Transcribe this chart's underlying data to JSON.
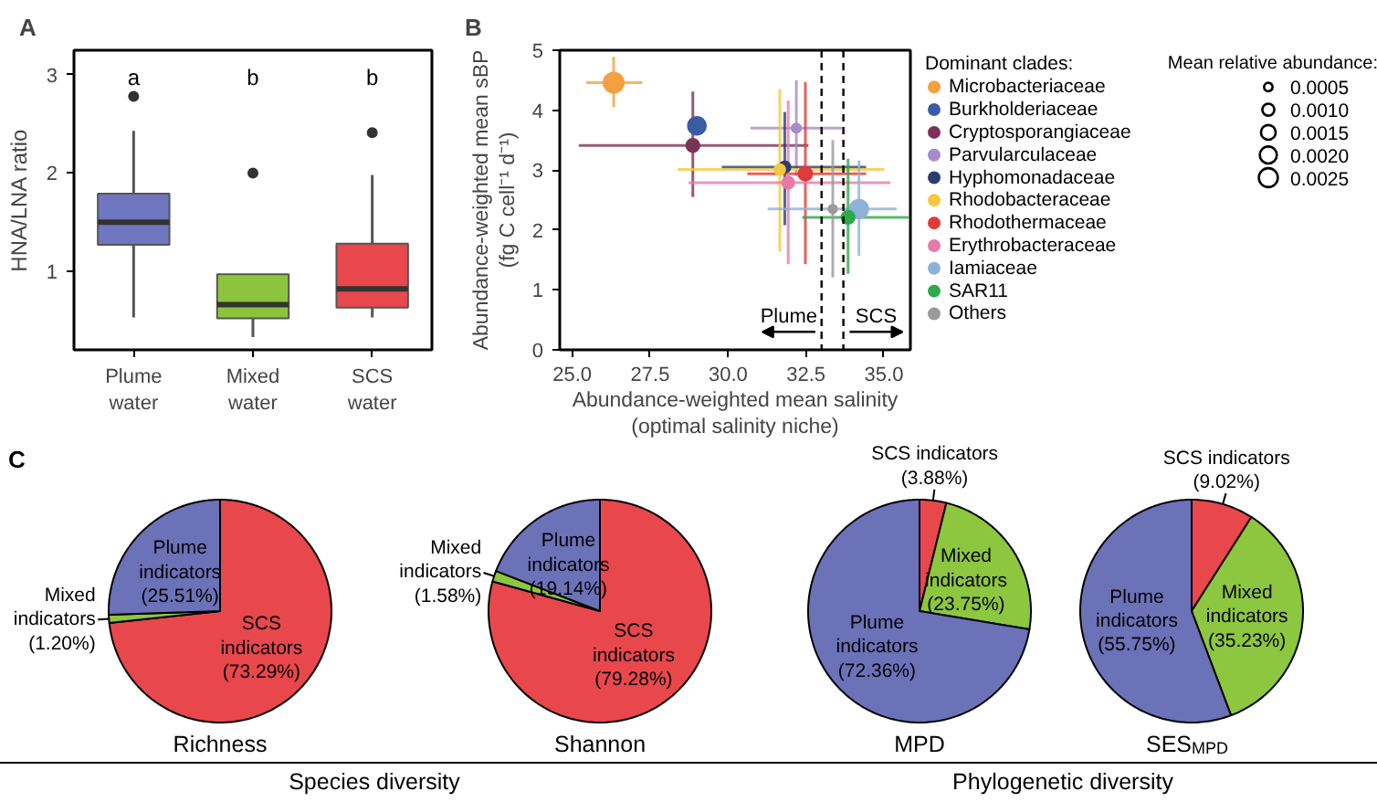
{
  "chart_data": [
    {
      "type": "box",
      "title": "A",
      "ylabel": "HNA/LNA ratio",
      "categories": [
        "Plume water",
        "Mixed water",
        "SCS water"
      ],
      "colors": [
        "#6f77c0",
        "#8cc43d",
        "#e8474b"
      ],
      "ylim": [
        0.2,
        3.25
      ],
      "yticks": [
        1,
        2,
        3
      ],
      "grid": false,
      "boxes": [
        {
          "low": 0.53,
          "q1": 1.27,
          "median": 1.5,
          "q3": 1.79,
          "high": 2.43,
          "outliers": [
            2.78
          ]
        },
        {
          "low": 0.33,
          "q1": 0.52,
          "median": 0.66,
          "q3": 0.97,
          "high": 0.97,
          "outliers": [
            2.0
          ]
        },
        {
          "low": 0.53,
          "q1": 0.63,
          "median": 0.82,
          "q3": 1.28,
          "high": 1.98,
          "outliers": [
            2.41
          ]
        }
      ],
      "annotations": [
        "a",
        "b",
        "b"
      ]
    },
    {
      "type": "bubble",
      "title": "B",
      "xlabel": "Abundance-weighted mean salinity\n(optimal salinity niche)",
      "ylabel": "Abundance-weighted mean sBP\n(fg C cell⁻¹ d⁻¹)",
      "legend_title": "Dominant clades:",
      "legend": "right",
      "grid": false,
      "xlim": [
        24.6,
        35.85
      ],
      "ylim": [
        0,
        5
      ],
      "xticks": [
        {
          "value": 25,
          "label": "25.0"
        },
        {
          "value": 27.5,
          "label": "27.5"
        },
        {
          "value": 30,
          "label": "30.0"
        },
        {
          "value": 32.5,
          "label": "32.5"
        },
        {
          "value": 35,
          "label": "35.0"
        }
      ],
      "yticks": [
        0,
        1,
        2,
        3,
        4,
        5
      ],
      "size_legend": [
        0.0005,
        {
          "value": 0.001,
          "label": "0.0010"
        },
        0.0015,
        {
          "value": 0.002,
          "label": "0.0020"
        },
        0.0025
      ],
      "series": [
        {
          "name": "Microbacteriaceae",
          "color": "#f4a040",
          "x": [
            26.33
          ],
          "values": [
            4.46
          ],
          "sizes": [
            0.0028
          ],
          "errors": [
            [
              4.05,
              4.89
            ]
          ],
          "xerrors": [
            [
              25.45,
              27.25
            ]
          ]
        },
        {
          "name": "Burkholderiaceae",
          "color": "#3b5ba5",
          "x": [
            29.0
          ],
          "values": [
            3.74
          ],
          "sizes": [
            0.0022
          ]
        },
        {
          "name": "Cryptosporangiaceae",
          "color": "#7b3355",
          "x": [
            28.87
          ],
          "values": [
            3.41
          ],
          "sizes": [
            0.0012
          ],
          "errors": [
            [
              2.55,
              4.31
            ]
          ],
          "xerrors": [
            [
              25.21,
              32.58
            ]
          ]
        },
        {
          "name": "Parvularculaceae",
          "color": "#a68cc8",
          "x": [
            32.19
          ],
          "values": [
            3.7
          ],
          "sizes": [
            0.0006
          ],
          "errors": [
            [
              2.9,
              4.5
            ]
          ],
          "xerrors": [
            [
              30.72,
              33.65
            ]
          ]
        },
        {
          "name": "Hyphomonadaceae",
          "color": "#2c3e70",
          "x": [
            31.82
          ],
          "values": [
            3.05
          ],
          "sizes": [
            0.0009
          ],
          "errors": [
            [
              2.08,
              3.97
            ]
          ],
          "xerrors": [
            [
              29.8,
              34.43
            ]
          ]
        },
        {
          "name": "Rhodobacteraceae",
          "color": "#f5c842",
          "x": [
            31.66
          ],
          "values": [
            3.01
          ],
          "sizes": [
            0.0008
          ],
          "errors": [
            [
              1.64,
              4.35
            ]
          ],
          "xerrors": [
            [
              28.38,
              35.02
            ]
          ]
        },
        {
          "name": "Rhodothermaceae",
          "color": "#e03a3a",
          "x": [
            32.48
          ],
          "values": [
            2.94
          ],
          "sizes": [
            0.0013
          ],
          "errors": [
            [
              1.43,
              4.47
            ]
          ],
          "xerrors": [
            [
              30.62,
              34.43
            ]
          ]
        },
        {
          "name": "Erythrobacteraceae",
          "color": "#e87aa8",
          "x": [
            31.93
          ],
          "values": [
            2.79
          ],
          "sizes": [
            0.001
          ],
          "errors": [
            [
              1.43,
              4.16
            ]
          ],
          "xerrors": [
            [
              28.73,
              35.21
            ]
          ]
        },
        {
          "name": "Iamiaceae",
          "color": "#8fb1d8",
          "x": [
            34.2
          ],
          "values": [
            2.35
          ],
          "sizes": [
            0.0024
          ],
          "errors": [
            [
              1.57,
              3.16
            ]
          ],
          "xerrors": [
            [
              31.27,
              35.41
            ]
          ]
        },
        {
          "name": "SAR11",
          "color": "#2ea84a",
          "x": [
            33.85
          ],
          "values": [
            2.21
          ],
          "sizes": [
            0.0012
          ],
          "errors": [
            [
              1.27,
              3.19
            ]
          ],
          "xerrors": [
            [
              32.38,
              35.8
            ]
          ]
        },
        {
          "name": "Others",
          "color": "#9a9a9a",
          "x": [
            33.36
          ],
          "values": [
            2.35
          ],
          "sizes": [
            0.0005
          ],
          "errors": [
            [
              1.21,
              3.5
            ]
          ]
        }
      ],
      "ref_lines": [
        {
          "axis": "x",
          "value": 33.0,
          "line_style": "dashed",
          "color": "#000000"
        },
        {
          "axis": "x",
          "value": 33.7,
          "line_style": "dashed",
          "color": "#000000"
        }
      ],
      "annotations": [
        "Mean relative abundance:",
        "Plume",
        "SCS"
      ]
    },
    {
      "type": "pie",
      "title": "Richness",
      "categories": [
        "SCS indicators",
        "Mixed indicators",
        "Plume indicators"
      ],
      "values": [
        73.29,
        1.2,
        25.51
      ],
      "value_labels": [
        "(73.29%)",
        "(1.20%)",
        "(25.51%)"
      ],
      "colors": [
        "#e8474c",
        "#8dc63f",
        "#6b72b8"
      ],
      "annotations": [
        "C",
        "Species diversity"
      ]
    },
    {
      "type": "pie",
      "title": "Shannon",
      "categories": [
        "SCS indicators",
        "Mixed indicators",
        "Plume indicators"
      ],
      "values": [
        79.28,
        1.58,
        19.14
      ],
      "value_labels": [
        "(79.28%)",
        "(1.58%)",
        "(19.14%)"
      ],
      "colors": [
        "#e8474c",
        "#8dc63f",
        "#6b72b8"
      ]
    },
    {
      "type": "pie",
      "title": "MPD",
      "categories": [
        "SCS indicators",
        "Mixed indicators",
        "Plume indicators"
      ],
      "values": [
        3.88,
        23.75,
        72.36
      ],
      "value_labels": [
        "(3.88%)",
        "(23.75%)",
        "(72.36%)"
      ],
      "colors": [
        "#e8474c",
        "#8dc63f",
        "#6b72b8"
      ],
      "annotations": [
        "Phylogenetic diversity"
      ]
    },
    {
      "type": "pie",
      "title": "SES$_{MPD}$",
      "categories": [
        "SCS indicators",
        "Mixed indicators",
        "Plume indicators"
      ],
      "values": [
        9.02,
        35.23,
        55.75
      ],
      "value_labels": [
        "(9.02%)",
        "(35.23%)",
        "(55.75%)"
      ],
      "colors": [
        "#e8474c",
        "#8dc63f",
        "#6b72b8"
      ]
    }
  ]
}
